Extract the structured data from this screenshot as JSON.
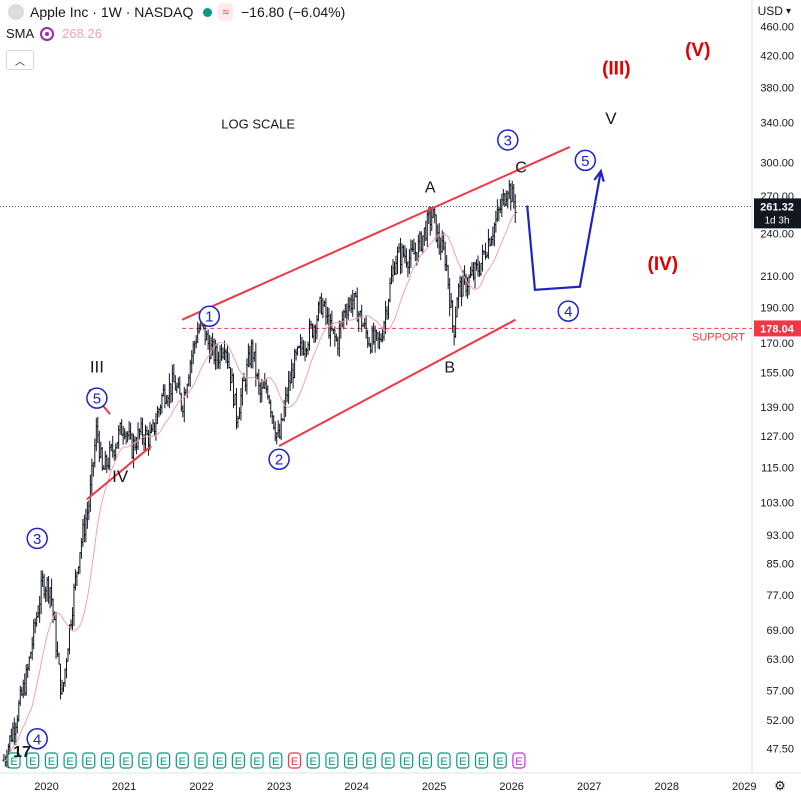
{
  "header": {
    "symbol_title": "Apple Inc · 1W · NASDAQ",
    "change": "−16.80 (−6.04%)",
    "dot_color": "#089981",
    "pill_icon": "wave-icon",
    "wave_glyph": "≈"
  },
  "indicator": {
    "name": "SMA",
    "value": "268.26"
  },
  "currency": {
    "label": "USD",
    "icon": "chevron-down-icon"
  },
  "price_badge": {
    "price": "261.32",
    "countdown": "1d 3h"
  },
  "support_badge": {
    "price": "178.04",
    "label": "SUPPORT"
  },
  "annotations": {
    "log_scale": "LOG SCALE",
    "wave_labels": [
      "1",
      "2",
      "3",
      "4",
      "5",
      "4",
      "3",
      "5"
    ],
    "roman_black": [
      "III",
      "IV",
      "V"
    ],
    "letters": [
      "A",
      "B",
      "C"
    ],
    "roman_red": [
      "(III)",
      "(IV)",
      "(V)"
    ]
  },
  "chart_data": {
    "type": "candlestick",
    "symbol": "AAPL",
    "interval": "1W",
    "y_scale": "log",
    "ylim": [
      44,
      500
    ],
    "y_ticks": [
      460,
      420,
      380,
      340,
      300,
      270,
      240,
      210,
      190,
      170,
      155,
      139,
      127,
      115,
      103,
      93,
      85,
      77,
      69,
      63,
      57,
      52,
      47.5
    ],
    "y_tick_labels": [
      "460.00",
      "420.00",
      "380.00",
      "340.00",
      "300.00",
      "270.00",
      "240.00",
      "210.00",
      "190.00",
      "170.00",
      "155.00",
      "139.00",
      "127.00",
      "115.00",
      "103.00",
      "93.00",
      "85.00",
      "77.00",
      "69.00",
      "63.00",
      "57.00",
      "52.00",
      "47.50"
    ],
    "x_ticks": [
      "2020",
      "2021",
      "2022",
      "2023",
      "2024",
      "2025",
      "2026",
      "2027",
      "2028",
      "2029"
    ],
    "x_tick_years": [
      2020,
      2021,
      2022,
      2023,
      2024,
      2025,
      2026,
      2027,
      2028,
      2029
    ],
    "xlim": [
      2019.4,
      2029.1
    ],
    "last_price": 261.32,
    "support_level": 178.04,
    "sma_value": 268.26,
    "price_path": [
      [
        2019.45,
        45.8
      ],
      [
        2019.6,
        52
      ],
      [
        2019.75,
        60
      ],
      [
        2019.85,
        70
      ],
      [
        2019.95,
        80
      ],
      [
        2020.05,
        79
      ],
      [
        2020.15,
        62
      ],
      [
        2020.2,
        56
      ],
      [
        2020.3,
        70
      ],
      [
        2020.42,
        88
      ],
      [
        2020.55,
        103
      ],
      [
        2020.6,
        116
      ],
      [
        2020.65,
        131
      ],
      [
        2020.72,
        113
      ],
      [
        2020.8,
        118
      ],
      [
        2020.9,
        125
      ],
      [
        2021.0,
        132
      ],
      [
        2021.1,
        122
      ],
      [
        2021.2,
        128
      ],
      [
        2021.35,
        126
      ],
      [
        2021.5,
        145
      ],
      [
        2021.65,
        150
      ],
      [
        2021.75,
        140
      ],
      [
        2021.85,
        160
      ],
      [
        2021.95,
        177
      ],
      [
        2022.0,
        180
      ],
      [
        2022.1,
        168
      ],
      [
        2022.2,
        162
      ],
      [
        2022.3,
        172
      ],
      [
        2022.4,
        148
      ],
      [
        2022.45,
        135
      ],
      [
        2022.55,
        150
      ],
      [
        2022.65,
        168
      ],
      [
        2022.75,
        144
      ],
      [
        2022.85,
        148
      ],
      [
        2022.95,
        130
      ],
      [
        2023.0,
        125
      ],
      [
        2023.1,
        145
      ],
      [
        2023.2,
        160
      ],
      [
        2023.3,
        168
      ],
      [
        2023.45,
        180
      ],
      [
        2023.55,
        193
      ],
      [
        2023.65,
        178
      ],
      [
        2023.75,
        170
      ],
      [
        2023.85,
        190
      ],
      [
        2023.95,
        195
      ],
      [
        2024.05,
        184
      ],
      [
        2024.15,
        172
      ],
      [
        2024.3,
        170
      ],
      [
        2024.4,
        195
      ],
      [
        2024.5,
        222
      ],
      [
        2024.6,
        225
      ],
      [
        2024.7,
        222
      ],
      [
        2024.8,
        230
      ],
      [
        2024.9,
        245
      ],
      [
        2024.98,
        255
      ],
      [
        2025.05,
        235
      ],
      [
        2025.15,
        222
      ],
      [
        2025.25,
        175
      ],
      [
        2025.3,
        200
      ],
      [
        2025.4,
        205
      ],
      [
        2025.5,
        210
      ],
      [
        2025.6,
        218
      ],
      [
        2025.7,
        235
      ],
      [
        2025.8,
        250
      ],
      [
        2025.9,
        268
      ],
      [
        2025.95,
        280
      ],
      [
        2026.0,
        270
      ],
      [
        2026.05,
        261.3
      ]
    ],
    "projection": [
      [
        2026.2,
        262
      ],
      [
        2026.3,
        201
      ],
      [
        2026.88,
        203
      ],
      [
        2027.15,
        292
      ]
    ],
    "trendlines": [
      {
        "from": [
          2021.75,
          183
        ],
        "to": [
          2026.75,
          315
        ]
      },
      {
        "from": [
          2023.0,
          123
        ],
        "to": [
          2026.05,
          183
        ]
      },
      {
        "from": [
          2020.52,
          104
        ],
        "to": [
          2021.35,
          123
        ]
      },
      {
        "from": [
          2020.55,
          147
        ],
        "to": [
          2020.82,
          136
        ]
      }
    ],
    "levels": [
      {
        "price": 178.04,
        "label": "SUPPORT",
        "style": "dashed",
        "color": "#f23645"
      }
    ],
    "annotation_points": [
      {
        "text": "LOG SCALE",
        "x": 2022.73,
        "y": 340,
        "color": "#131722",
        "style": "plain"
      },
      {
        "text": "1",
        "x": 2022.1,
        "y": 185,
        "color": "#1e22c8",
        "style": "circle"
      },
      {
        "text": "2",
        "x": 2023.0,
        "y": 118,
        "color": "#1e22c8",
        "style": "circle"
      },
      {
        "text": "3",
        "x": 2025.95,
        "y": 322,
        "color": "#1e22c8",
        "style": "circle"
      },
      {
        "text": "4",
        "x": 2026.73,
        "y": 188,
        "color": "#1e22c8",
        "style": "circle"
      },
      {
        "text": "5",
        "x": 2026.95,
        "y": 302,
        "color": "#1e22c8",
        "style": "circle"
      },
      {
        "text": "5",
        "x": 2020.65,
        "y": 143,
        "color": "#1e22c8",
        "style": "circle"
      },
      {
        "text": "3",
        "x": 2019.88,
        "y": 92,
        "color": "#1e22c8",
        "style": "circle"
      },
      {
        "text": "4",
        "x": 2019.88,
        "y": 49,
        "color": "#1e22c8",
        "style": "circle"
      },
      {
        "text": "III",
        "x": 2020.65,
        "y": 158,
        "color": "#131722",
        "style": "plain"
      },
      {
        "text": "IV",
        "x": 2020.95,
        "y": 112,
        "color": "#131722",
        "style": "plain"
      },
      {
        "text": "V",
        "x": 2027.28,
        "y": 345,
        "color": "#131722",
        "style": "plain"
      },
      {
        "text": "A",
        "x": 2024.95,
        "y": 278,
        "color": "#131722",
        "style": "plain"
      },
      {
        "text": "B",
        "x": 2025.2,
        "y": 158,
        "color": "#131722",
        "style": "plain"
      },
      {
        "text": "C",
        "x": 2026.12,
        "y": 296,
        "color": "#131722",
        "style": "plain"
      },
      {
        "text": "(III)",
        "x": 2027.35,
        "y": 403,
        "color": "#e00000",
        "style": "bold"
      },
      {
        "text": "(IV)",
        "x": 2027.95,
        "y": 218,
        "color": "#e00000",
        "style": "bold"
      },
      {
        "text": "(V)",
        "x": 2028.4,
        "y": 427,
        "color": "#e00000",
        "style": "bold"
      }
    ],
    "colors": {
      "candles": "#131722",
      "trendline": "#f23645",
      "projection": "#1e22c8",
      "wave_circle": "#1e22c8",
      "roman_red": "#e00000",
      "sma": "#f3a1b3",
      "support": "#f23645",
      "earnings": "#089981"
    },
    "earnings_markers": {
      "count": 28,
      "symbol": "E"
    }
  }
}
